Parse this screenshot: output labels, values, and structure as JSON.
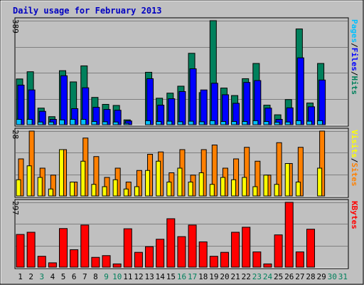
{
  "chart_data": {
    "type": "bar",
    "title": "Daily usage for February 2013",
    "days": [
      "1",
      "2",
      "3",
      "4",
      "5",
      "6",
      "7",
      "8",
      "9",
      "10",
      "11",
      "12",
      "13",
      "14",
      "15",
      "16",
      "17",
      "18",
      "19",
      "20",
      "21",
      "22",
      "23",
      "24",
      "25",
      "26",
      "27",
      "28",
      "29",
      "30",
      "31"
    ],
    "weekend_days": [
      "3",
      "9",
      "10",
      "16",
      "17",
      "23",
      "24",
      "30",
      "31"
    ],
    "colors": {
      "background": "#c0c0c0",
      "plot": "#c0c0c0",
      "title": "#0000c0",
      "hits": "#00805c",
      "files": "#0000ff",
      "pages": "#00c0ff",
      "visits": "#ffff00",
      "sites": "#ff8000",
      "kbytes": "#ff0000",
      "weekday_tick": "#000000",
      "weekend_tick": "#00805c"
    },
    "panels": [
      {
        "ymax_label": "389",
        "ymax": 389,
        "legend": [
          {
            "text": "Pages",
            "color": "#00c0ff"
          },
          {
            "text": "/",
            "color": "#000000"
          },
          {
            "text": "Files",
            "color": "#0000ff"
          },
          {
            "text": "/",
            "color": "#000000"
          },
          {
            "text": "Hits",
            "color": "#00805c"
          }
        ],
        "series": [
          {
            "key": "hits",
            "values": [
              171,
              198,
              62,
              30,
              202,
              160,
              220,
              102,
              76,
              72,
              18,
              0,
              196,
              99,
              118,
              144,
              267,
              120,
              389,
              137,
              109,
              172,
              229,
              73,
              37,
              94,
              358,
              81,
              229,
              0,
              0
            ]
          },
          {
            "key": "files",
            "values": [
              148,
              130,
              50,
              20,
              183,
              60,
              138,
              65,
              57,
              54,
              14,
              0,
              172,
              73,
              97,
              124,
              209,
              130,
              155,
              112,
              80,
              158,
              165,
              62,
              20,
              63,
              250,
              67,
              167,
              0,
              0
            ]
          },
          {
            "key": "pages",
            "values": [
              20,
              20,
              10,
              10,
              18,
              20,
              20,
              12,
              11,
              10,
              5,
              0,
              15,
              12,
              13,
              11,
              13,
              11,
              15,
              12,
              12,
              12,
              15,
              12,
              9,
              10,
              15,
              13,
              15,
              0,
              0
            ]
          }
        ]
      },
      {
        "ymax_label": "28",
        "ymax": 28,
        "legend": [
          {
            "text": "Visits",
            "color": "#ffff00"
          },
          {
            "text": "/",
            "color": "#000000"
          },
          {
            "text": "Sites",
            "color": "#ff8000"
          }
        ],
        "series": [
          {
            "key": "sites",
            "values": [
              16,
              28,
              12,
              9,
              20,
              6,
              25,
              17,
              8,
              12,
              6,
              11,
              18,
              19,
              10,
              20,
              9,
              20,
              22,
              12,
              16,
              21,
              15,
              9,
              23,
              14,
              21,
              0,
              28,
              0,
              0
            ]
          },
          {
            "key": "visits",
            "values": [
              7,
              13,
              8,
              3,
              20,
              6,
              15,
              5,
              4,
              7,
              3,
              4,
              11,
              15,
              6,
              12,
              6,
              10,
              5,
              8,
              7,
              8,
              4,
              9,
              5,
              14,
              6,
              0,
              12,
              0,
              0
            ]
          }
        ]
      },
      {
        "ymax_label": "297",
        "ymax": 297,
        "legend": [
          {
            "text": "KBytes",
            "color": "#ff0000"
          }
        ],
        "series": [
          {
            "key": "kbytes",
            "values": [
              150,
              160,
              50,
              20,
              177,
              80,
              193,
              45,
              53,
              15,
              176,
              68,
              94,
              128,
              222,
              140,
              193,
              116,
              50,
              68,
              160,
              183,
              70,
              15,
              148,
              297,
              70,
              174,
              0,
              0,
              0
            ]
          }
        ]
      }
    ]
  }
}
